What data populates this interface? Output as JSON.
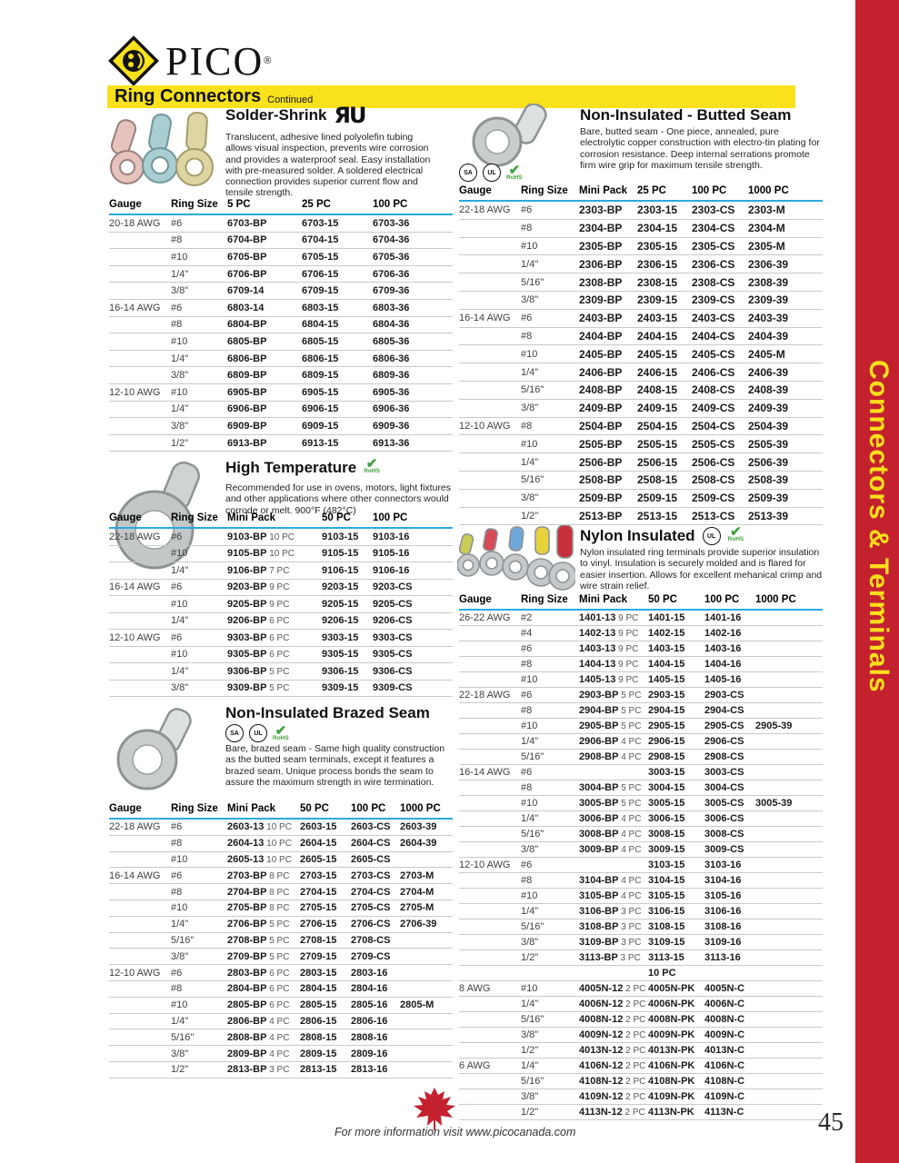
{
  "page": {
    "brand": "PICO",
    "brand_mark": "®",
    "header_title": "Ring Connectors",
    "header_subtitle": "Continued",
    "side_tab": "Connectors & Terminals",
    "colors": {
      "accent_red": "#C4212F",
      "accent_yellow": "#F9E11C",
      "table_rule_blue": "#29ABE2",
      "rohs_green": "#3FA33F"
    }
  },
  "icons": {
    "ul_recognized": "ЯU",
    "csa": "SA",
    "ul": "UL",
    "rohs_check": "✔",
    "rohs_label": "RoHS"
  },
  "footer": {
    "note": "For more information visit www.picocanada.com",
    "page_number": "45"
  },
  "sections": {
    "solder_shrink": {
      "title": "Solder-Shrink",
      "certifications": [
        "UL Recognized"
      ],
      "description": "Translucent, adhesive lined polyolefin tubing allows visual inspection, prevents wire corrosion and provides a waterproof seal. Easy installation with pre-measured solder. A soldered electrical connection provides superior current flow and tensile strength.",
      "columns": [
        "Gauge",
        "Ring Size",
        "5 PC",
        "25 PC",
        "100 PC"
      ],
      "rows": [
        [
          "20-18 AWG",
          "#6",
          "6703-BP",
          "6703-15",
          "6703-36"
        ],
        [
          "",
          "#8",
          "6704-BP",
          "6704-15",
          "6704-36"
        ],
        [
          "",
          "#10",
          "6705-BP",
          "6705-15",
          "6705-36"
        ],
        [
          "",
          "1/4\"",
          "6706-BP",
          "6706-15",
          "6706-36"
        ],
        [
          "",
          "3/8\"",
          "6709-14",
          "6709-15",
          "6709-36"
        ],
        [
          "16-14 AWG",
          "#6",
          "6803-14",
          "6803-15",
          "6803-36"
        ],
        [
          "",
          "#8",
          "6804-BP",
          "6804-15",
          "6804-36"
        ],
        [
          "",
          "#10",
          "6805-BP",
          "6805-15",
          "6805-36"
        ],
        [
          "",
          "1/4\"",
          "6806-BP",
          "6806-15",
          "6806-36"
        ],
        [
          "",
          "3/8\"",
          "6809-BP",
          "6809-15",
          "6809-36"
        ],
        [
          "12-10 AWG",
          "#10",
          "6905-BP",
          "6905-15",
          "6905-36"
        ],
        [
          "",
          "1/4\"",
          "6906-BP",
          "6906-15",
          "6906-36"
        ],
        [
          "",
          "3/8\"",
          "6909-BP",
          "6909-15",
          "6909-36"
        ],
        [
          "",
          "1/2\"",
          "6913-BP",
          "6913-15",
          "6913-36"
        ]
      ]
    },
    "high_temperature": {
      "title": "High Temperature",
      "certifications": [
        "RoHS"
      ],
      "description": "Recommended for use in ovens, motors, light fixtures and other applications where other connectors would corrode or melt. 900°F (482°C)",
      "columns": [
        "Gauge",
        "Ring Size",
        "Mini Pack",
        "50 PC",
        "100 PC"
      ],
      "rows": [
        [
          "22-18 AWG",
          "#6",
          "9103-BP 10 PC",
          "9103-15",
          "9103-16"
        ],
        [
          "",
          "#10",
          "9105-BP 10 PC",
          "9105-15",
          "9105-16"
        ],
        [
          "",
          "1/4\"",
          "9106-BP 7 PC",
          "9106-15",
          "9106-16"
        ],
        [
          "16-14 AWG",
          "#6",
          "9203-BP 9 PC",
          "9203-15",
          "9203-CS"
        ],
        [
          "",
          "#10",
          "9205-BP 9 PC",
          "9205-15",
          "9205-CS"
        ],
        [
          "",
          "1/4\"",
          "9206-BP 6 PC",
          "9206-15",
          "9206-CS"
        ],
        [
          "12-10 AWG",
          "#6",
          "9303-BP 6 PC",
          "9303-15",
          "9303-CS"
        ],
        [
          "",
          "#10",
          "9305-BP 6 PC",
          "9305-15",
          "9305-CS"
        ],
        [
          "",
          "1/4\"",
          "9306-BP 5 PC",
          "9306-15",
          "9306-CS"
        ],
        [
          "",
          "3/8\"",
          "9309-BP 5 PC",
          "9309-15",
          "9309-CS"
        ]
      ]
    },
    "brazed_seam": {
      "title": "Non-Insulated Brazed Seam",
      "certifications": [
        "CSA",
        "UL",
        "RoHS"
      ],
      "description": "Bare, brazed seam - Same high quality construction as the butted seam terminals, except it features a brazed seam. Unique process bonds the seam to assure the maximum strength in wire termination.",
      "columns": [
        "Gauge",
        "Ring Size",
        "Mini Pack",
        "50 PC",
        "100 PC",
        "1000 PC"
      ],
      "rows": [
        [
          "22-18 AWG",
          "#6",
          "2603-13 10 PC",
          "2603-15",
          "2603-CS",
          "2603-39"
        ],
        [
          "",
          "#8",
          "2604-13 10 PC",
          "2604-15",
          "2604-CS",
          "2604-39"
        ],
        [
          "",
          "#10",
          "2605-13 10 PC",
          "2605-15",
          "2605-CS",
          ""
        ],
        [
          "16-14 AWG",
          "#6",
          "2703-BP 8 PC",
          "2703-15",
          "2703-CS",
          "2703-M"
        ],
        [
          "",
          "#8",
          "2704-BP 8 PC",
          "2704-15",
          "2704-CS",
          "2704-M"
        ],
        [
          "",
          "#10",
          "2705-BP 8 PC",
          "2705-15",
          "2705-CS",
          "2705-M"
        ],
        [
          "",
          "1/4\"",
          "2706-BP 5 PC",
          "2706-15",
          "2706-CS",
          "2706-39"
        ],
        [
          "",
          "5/16\"",
          "2708-BP 5 PC",
          "2708-15",
          "2708-CS",
          ""
        ],
        [
          "",
          "3/8\"",
          "2709-BP 5 PC",
          "2709-15",
          "2709-CS",
          ""
        ],
        [
          "12-10 AWG",
          "#6",
          "2803-BP 6 PC",
          "2803-15",
          "2803-16",
          ""
        ],
        [
          "",
          "#8",
          "2804-BP 6 PC",
          "2804-15",
          "2804-16",
          ""
        ],
        [
          "",
          "#10",
          "2805-BP 6 PC",
          "2805-15",
          "2805-16",
          "2805-M"
        ],
        [
          "",
          "1/4\"",
          "2806-BP 4 PC",
          "2806-15",
          "2806-16",
          ""
        ],
        [
          "",
          "5/16\"",
          "2808-BP 4 PC",
          "2808-15",
          "2808-16",
          ""
        ],
        [
          "",
          "3/8\"",
          "2809-BP 4 PC",
          "2809-15",
          "2809-16",
          ""
        ],
        [
          "",
          "1/2\"",
          "2813-BP 3 PC",
          "2813-15",
          "2813-16",
          ""
        ]
      ]
    },
    "butted_seam": {
      "title": "Non-Insulated - Butted Seam",
      "certifications": [
        "CSA",
        "UL",
        "RoHS"
      ],
      "description": "Bare, butted seam - One piece, annealed, pure electrolytic copper construction with electro-tin plating for corrosion resistance. Deep internal serrations promote firm wire grip for maximum tensile strength.",
      "columns": [
        "Gauge",
        "Ring Size",
        "Mini Pack",
        "25 PC",
        "100 PC",
        "1000 PC"
      ],
      "rows": [
        [
          "22-18 AWG",
          "#6",
          "2303-BP",
          "2303-15",
          "2303-CS",
          "2303-M"
        ],
        [
          "",
          "#8",
          "2304-BP",
          "2304-15",
          "2304-CS",
          "2304-M"
        ],
        [
          "",
          "#10",
          "2305-BP",
          "2305-15",
          "2305-CS",
          "2305-M"
        ],
        [
          "",
          "1/4\"",
          "2306-BP",
          "2306-15",
          "2306-CS",
          "2306-39"
        ],
        [
          "",
          "5/16\"",
          "2308-BP",
          "2308-15",
          "2308-CS",
          "2308-39"
        ],
        [
          "",
          "3/8\"",
          "2309-BP",
          "2309-15",
          "2309-CS",
          "2309-39"
        ],
        [
          "16-14 AWG",
          "#6",
          "2403-BP",
          "2403-15",
          "2403-CS",
          "2403-39"
        ],
        [
          "",
          "#8",
          "2404-BP",
          "2404-15",
          "2404-CS",
          "2404-39"
        ],
        [
          "",
          "#10",
          "2405-BP",
          "2405-15",
          "2405-CS",
          "2405-M"
        ],
        [
          "",
          "1/4\"",
          "2406-BP",
          "2406-15",
          "2406-CS",
          "2406-39"
        ],
        [
          "",
          "5/16\"",
          "2408-BP",
          "2408-15",
          "2408-CS",
          "2408-39"
        ],
        [
          "",
          "3/8\"",
          "2409-BP",
          "2409-15",
          "2409-CS",
          "2409-39"
        ],
        [
          "12-10 AWG",
          "#8",
          "2504-BP",
          "2504-15",
          "2504-CS",
          "2504-39"
        ],
        [
          "",
          "#10",
          "2505-BP",
          "2505-15",
          "2505-CS",
          "2505-39"
        ],
        [
          "",
          "1/4\"",
          "2506-BP",
          "2506-15",
          "2506-CS",
          "2506-39"
        ],
        [
          "",
          "5/16\"",
          "2508-BP",
          "2508-15",
          "2508-CS",
          "2508-39"
        ],
        [
          "",
          "3/8\"",
          "2509-BP",
          "2509-15",
          "2509-CS",
          "2509-39"
        ],
        [
          "",
          "1/2\"",
          "2513-BP",
          "2513-15",
          "2513-CS",
          "2513-39"
        ]
      ]
    },
    "nylon": {
      "title": "Nylon Insulated",
      "certifications": [
        "UL",
        "RoHS"
      ],
      "description": "Nylon insulated ring terminals provide superior insulation to vinyl. Insulation is securely molded and is flared for easier insertion. Allows for excellent mehanical crimp and wire strain relief.",
      "columns": [
        "Gauge",
        "Ring Size",
        "Mini Pack",
        "50 PC",
        "100 PC",
        "1000 PC"
      ],
      "rows": [
        [
          "26-22 AWG",
          "#2",
          "1401-13 9 PC",
          "1401-15",
          "1401-16",
          ""
        ],
        [
          "",
          "#4",
          "1402-13 9 PC",
          "1402-15",
          "1402-16",
          ""
        ],
        [
          "",
          "#6",
          "1403-13 9 PC",
          "1403-15",
          "1403-16",
          ""
        ],
        [
          "",
          "#8",
          "1404-13 9 PC",
          "1404-15",
          "1404-16",
          ""
        ],
        [
          "",
          "#10",
          "1405-13 9 PC",
          "1405-15",
          "1405-16",
          ""
        ],
        [
          "22-18 AWG",
          "#6",
          "2903-BP 5 PC",
          "2903-15",
          "2903-CS",
          ""
        ],
        [
          "",
          "#8",
          "2904-BP 5 PC",
          "2904-15",
          "2904-CS",
          ""
        ],
        [
          "",
          "#10",
          "2905-BP 5 PC",
          "2905-15",
          "2905-CS",
          "2905-39"
        ],
        [
          "",
          "1/4\"",
          "2906-BP 4 PC",
          "2906-15",
          "2906-CS",
          ""
        ],
        [
          "",
          "5/16\"",
          "2908-BP 4 PC",
          "2908-15",
          "2908-CS",
          ""
        ],
        [
          "16-14 AWG",
          "#6",
          "",
          "3003-15",
          "3003-CS",
          ""
        ],
        [
          "",
          "#8",
          "3004-BP 5 PC",
          "3004-15",
          "3004-CS",
          ""
        ],
        [
          "",
          "#10",
          "3005-BP 5 PC",
          "3005-15",
          "3005-CS",
          "3005-39"
        ],
        [
          "",
          "1/4\"",
          "3006-BP 4 PC",
          "3006-15",
          "3006-CS",
          ""
        ],
        [
          "",
          "5/16\"",
          "3008-BP 4 PC",
          "3008-15",
          "3008-CS",
          ""
        ],
        [
          "",
          "3/8\"",
          "3009-BP 4 PC",
          "3009-15",
          "3009-CS",
          ""
        ],
        [
          "12-10 AWG",
          "#6",
          "",
          "3103-15",
          "3103-16",
          ""
        ],
        [
          "",
          "#8",
          "3104-BP 4 PC",
          "3104-15",
          "3104-16",
          ""
        ],
        [
          "",
          "#10",
          "3105-BP 4 PC",
          "3105-15",
          "3105-16",
          ""
        ],
        [
          "",
          "1/4\"",
          "3106-BP 3 PC",
          "3106-15",
          "3106-16",
          ""
        ],
        [
          "",
          "5/16\"",
          "3108-BP 3 PC",
          "3108-15",
          "3108-16",
          ""
        ],
        [
          "",
          "3/8\"",
          "3109-BP 3 PC",
          "3109-15",
          "3109-16",
          ""
        ],
        [
          "",
          "1/2\"",
          "3113-BP 3 PC",
          "3113-15",
          "3113-16",
          ""
        ],
        [
          "",
          "",
          "",
          "10 PC",
          "",
          ""
        ],
        [
          "8 AWG",
          "#10",
          "4005N-12 2 PC",
          "4005N-PK",
          "4005N-C",
          ""
        ],
        [
          "",
          "1/4\"",
          "4006N-12 2 PC",
          "4006N-PK",
          "4006N-C",
          ""
        ],
        [
          "",
          "5/16\"",
          "4008N-12 2 PC",
          "4008N-PK",
          "4008N-C",
          ""
        ],
        [
          "",
          "3/8\"",
          "4009N-12 2 PC",
          "4009N-PK",
          "4009N-C",
          ""
        ],
        [
          "",
          "1/2\"",
          "4013N-12 2 PC",
          "4013N-PK",
          "4013N-C",
          ""
        ],
        [
          "6 AWG",
          "1/4\"",
          "4106N-12 2 PC",
          "4106N-PK",
          "4106N-C",
          ""
        ],
        [
          "",
          "5/16\"",
          "4108N-12 2 PC",
          "4108N-PK",
          "4108N-C",
          ""
        ],
        [
          "",
          "3/8\"",
          "4109N-12 2 PC",
          "4109N-PK",
          "4109N-C",
          ""
        ],
        [
          "",
          "1/2\"",
          "4113N-12 2 PC",
          "4113N-PK",
          "4113N-C",
          ""
        ]
      ]
    }
  }
}
